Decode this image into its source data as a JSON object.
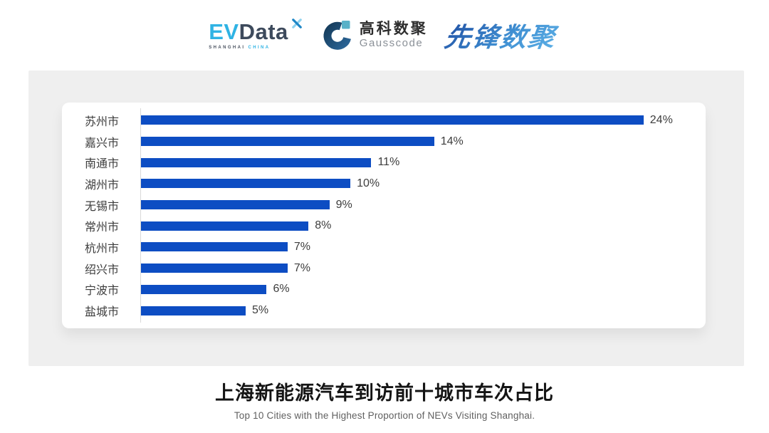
{
  "header": {
    "evdata": {
      "ev": "EV",
      "data": "Data",
      "sub_left": "SHANGHAI",
      "sub_right": "CHINA"
    },
    "gausscode": {
      "cn": "高科数聚",
      "en": "Gausscode"
    },
    "xianfeng": {
      "text": "先锋数聚"
    }
  },
  "chart_data": {
    "type": "bar",
    "orientation": "horizontal",
    "title": "上海新能源汽车到访前十城市车次占比",
    "subtitle": "Top 10 Cities with the Highest Proportion of  NEVs Visiting Shanghai.",
    "categories": [
      "苏州市",
      "嘉兴市",
      "南通市",
      "湖州市",
      "无锡市",
      "常州市",
      "杭州市",
      "绍兴市",
      "宁波市",
      "盐城市"
    ],
    "values": [
      24,
      14,
      11,
      10,
      9,
      8,
      7,
      7,
      6,
      5
    ],
    "value_labels": [
      "24%",
      "14%",
      "11%",
      "10%",
      "9%",
      "8%",
      "7%",
      "7%",
      "6%",
      "5%"
    ],
    "unit": "%",
    "xlim": [
      0,
      24
    ],
    "grid": false,
    "legend": "none",
    "bar_color": "#0d4dc3",
    "axis_line_color": "#d9d9d9",
    "label_color": "#3d3d3d"
  },
  "footer": {
    "title": "上海新能源汽车到访前十城市车次占比",
    "subtitle": "Top 10 Cities with the Highest Proportion of  NEVs Visiting Shanghai."
  },
  "colors": {
    "board_bg": "#efefef",
    "card_bg": "#ffffff",
    "evdata_blue": "#2fb3e4",
    "evdata_dark": "#3d4a5c",
    "gausscode_navy": "#17405f",
    "gausscode_teal": "#58b1c8",
    "xianfeng_blue": "#2f7ac6"
  }
}
